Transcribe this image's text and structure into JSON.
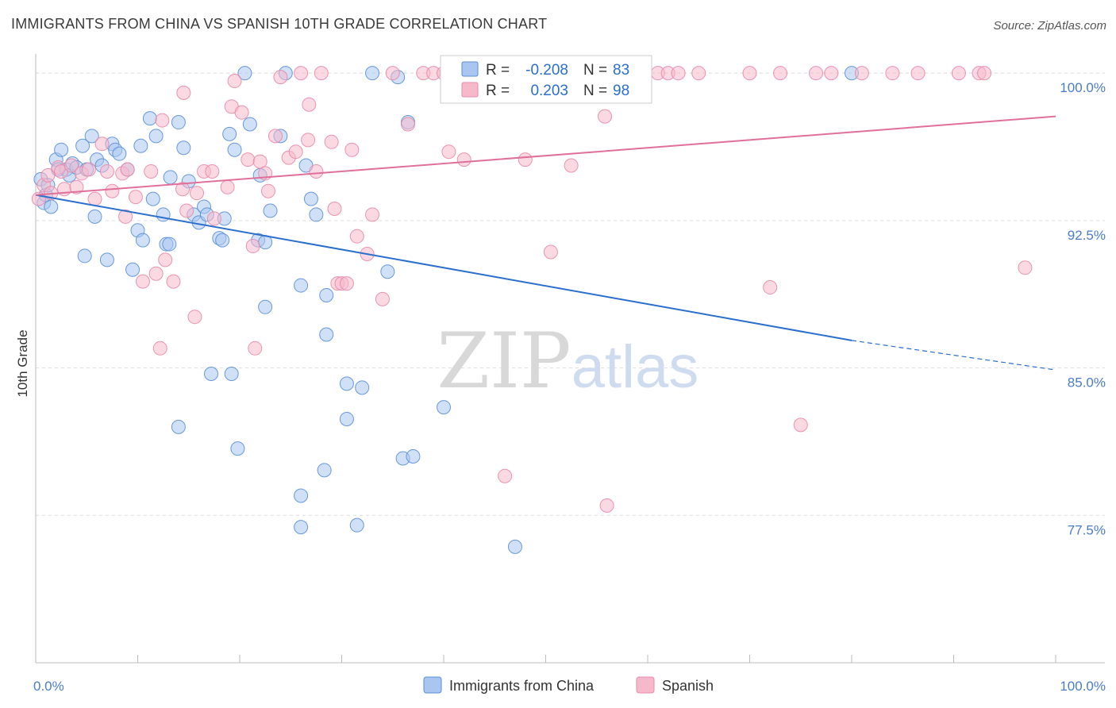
{
  "header": {
    "title": "IMMIGRANTS FROM CHINA VS SPANISH 10TH GRADE CORRELATION CHART",
    "source": "Source: ZipAtlas.com"
  },
  "watermark": {
    "zip": "ZIP",
    "atlas": "atlas"
  },
  "colors": {
    "china_fill": "#a9c6f0",
    "china_stroke": "#5b8fd6",
    "china_line": "#2a6fce",
    "spanish_fill": "#f6b9cc",
    "spanish_stroke": "#e88aa8",
    "spanish_line": "#e0709a",
    "grid": "#dddddd",
    "tick_text": "#4a7cc9"
  },
  "chart_data": {
    "type": "scatter",
    "title": "IMMIGRANTS FROM CHINA VS SPANISH 10TH GRADE CORRELATION CHART",
    "xlabel": "",
    "ylabel": "10th Grade",
    "xlim": [
      0,
      100
    ],
    "ylim": [
      70.0,
      101.5
    ],
    "x_tick_labels": [
      "0.0%",
      "100.0%"
    ],
    "y_ticks": [
      {
        "value": 100.0,
        "label": "100.0%"
      },
      {
        "value": 92.5,
        "label": "92.5%"
      },
      {
        "value": 85.0,
        "label": "85.0%"
      },
      {
        "value": 77.5,
        "label": "77.5%"
      }
    ],
    "grid": true,
    "legend": {
      "placement": "top-center",
      "entries": [
        {
          "r_label": "R =",
          "r": "-0.208",
          "n_label": "N =",
          "n": "83"
        },
        {
          "r_label": "R =",
          "r": "0.203",
          "n_label": "N =",
          "n": "98"
        }
      ]
    },
    "series": [
      {
        "name": "Immigrants from China",
        "r": -0.208,
        "n": 83,
        "trend": {
          "x": [
            0,
            80
          ],
          "y": [
            93.8,
            86.4
          ],
          "dashed_to": {
            "x": 100,
            "y": 84.9
          }
        },
        "points": [
          [
            0.5,
            94.6
          ],
          [
            0.8,
            93.4
          ],
          [
            1.0,
            93.8
          ],
          [
            1.2,
            94.3
          ],
          [
            1.5,
            93.2
          ],
          [
            2.0,
            95.6
          ],
          [
            2.2,
            95.1
          ],
          [
            2.5,
            96.1
          ],
          [
            3.0,
            95.1
          ],
          [
            3.3,
            94.8
          ],
          [
            3.6,
            95.4
          ],
          [
            4.0,
            95.2
          ],
          [
            4.6,
            96.3
          ],
          [
            5.0,
            95.1
          ],
          [
            5.5,
            96.8
          ],
          [
            6.0,
            95.6
          ],
          [
            6.5,
            95.3
          ],
          [
            7.5,
            96.4
          ],
          [
            7.8,
            96.1
          ],
          [
            8.2,
            95.9
          ],
          [
            9.0,
            95.1
          ],
          [
            10.3,
            96.3
          ],
          [
            11.2,
            97.7
          ],
          [
            11.8,
            96.8
          ],
          [
            13.2,
            94.7
          ],
          [
            14.0,
            97.5
          ],
          [
            14.5,
            96.2
          ],
          [
            15.0,
            94.5
          ],
          [
            15.5,
            92.8
          ],
          [
            16.0,
            92.4
          ],
          [
            16.5,
            93.2
          ],
          [
            16.8,
            92.8
          ],
          [
            11.5,
            93.6
          ],
          [
            12.5,
            92.8
          ],
          [
            10.0,
            92.0
          ],
          [
            10.5,
            91.5
          ],
          [
            9.5,
            90.0
          ],
          [
            12.8,
            91.3
          ],
          [
            13.1,
            91.3
          ],
          [
            7.0,
            90.5
          ],
          [
            4.8,
            90.7
          ],
          [
            5.8,
            92.7
          ],
          [
            18.5,
            92.6
          ],
          [
            18.0,
            91.6
          ],
          [
            18.3,
            91.5
          ],
          [
            21.8,
            91.5
          ],
          [
            22.5,
            91.4
          ],
          [
            19.0,
            96.9
          ],
          [
            19.5,
            96.1
          ],
          [
            21.0,
            97.4
          ],
          [
            22.0,
            94.8
          ],
          [
            23.0,
            93.0
          ],
          [
            24.0,
            96.8
          ],
          [
            26.5,
            95.3
          ],
          [
            27.0,
            93.6
          ],
          [
            27.5,
            92.8
          ],
          [
            24.5,
            100.0
          ],
          [
            20.5,
            100.0
          ],
          [
            26.0,
            89.2
          ],
          [
            28.5,
            88.7
          ],
          [
            22.5,
            88.1
          ],
          [
            28.5,
            86.7
          ],
          [
            17.2,
            84.7
          ],
          [
            19.2,
            84.7
          ],
          [
            30.5,
            84.2
          ],
          [
            32.0,
            84.0
          ],
          [
            30.5,
            82.4
          ],
          [
            14.0,
            82.0
          ],
          [
            19.8,
            80.9
          ],
          [
            26.0,
            78.5
          ],
          [
            28.3,
            79.8
          ],
          [
            36.0,
            80.4
          ],
          [
            37.0,
            80.5
          ],
          [
            40.0,
            83.0
          ],
          [
            34.5,
            89.9
          ],
          [
            33.0,
            100.0
          ],
          [
            35.5,
            99.8
          ],
          [
            36.5,
            97.5
          ],
          [
            41.0,
            100.0
          ],
          [
            47.0,
            75.9
          ],
          [
            31.5,
            77.0
          ],
          [
            26.0,
            76.9
          ],
          [
            80.0,
            100.0
          ]
        ]
      },
      {
        "name": "Spanish",
        "r": 0.203,
        "n": 98,
        "trend": {
          "x": [
            0,
            100
          ],
          "y": [
            93.8,
            97.8
          ]
        },
        "points": [
          [
            0.3,
            93.6
          ],
          [
            0.8,
            94.3
          ],
          [
            1.2,
            94.8
          ],
          [
            1.5,
            93.9
          ],
          [
            2.2,
            95.2
          ],
          [
            2.5,
            95.0
          ],
          [
            2.8,
            94.1
          ],
          [
            3.5,
            95.3
          ],
          [
            4.0,
            94.2
          ],
          [
            4.5,
            94.9
          ],
          [
            5.2,
            95.1
          ],
          [
            5.8,
            93.6
          ],
          [
            6.5,
            96.4
          ],
          [
            7.0,
            95.0
          ],
          [
            7.5,
            94.0
          ],
          [
            8.5,
            94.9
          ],
          [
            9.0,
            95.1
          ],
          [
            8.8,
            92.7
          ],
          [
            9.8,
            93.7
          ],
          [
            10.5,
            89.4
          ],
          [
            11.3,
            95.0
          ],
          [
            11.8,
            89.8
          ],
          [
            12.4,
            97.6
          ],
          [
            12.2,
            86.0
          ],
          [
            12.7,
            90.5
          ],
          [
            13.5,
            89.4
          ],
          [
            14.5,
            99.0
          ],
          [
            14.8,
            93.0
          ],
          [
            14.4,
            94.1
          ],
          [
            15.8,
            93.9
          ],
          [
            15.6,
            87.6
          ],
          [
            16.5,
            95.0
          ],
          [
            17.3,
            95.0
          ],
          [
            17.5,
            92.6
          ],
          [
            18.8,
            94.2
          ],
          [
            19.2,
            98.3
          ],
          [
            19.5,
            99.6
          ],
          [
            20.2,
            98.0
          ],
          [
            20.8,
            95.6
          ],
          [
            21.3,
            91.2
          ],
          [
            21.5,
            86.0
          ],
          [
            22.0,
            95.5
          ],
          [
            22.5,
            94.9
          ],
          [
            22.8,
            94.0
          ],
          [
            23.5,
            96.8
          ],
          [
            24.0,
            99.8
          ],
          [
            24.8,
            95.7
          ],
          [
            25.5,
            96.0
          ],
          [
            26.0,
            100.0
          ],
          [
            26.7,
            96.6
          ],
          [
            26.8,
            98.4
          ],
          [
            27.5,
            95.0
          ],
          [
            28.0,
            100.0
          ],
          [
            29.0,
            96.5
          ],
          [
            29.3,
            93.1
          ],
          [
            29.6,
            89.3
          ],
          [
            30.0,
            89.3
          ],
          [
            30.5,
            89.3
          ],
          [
            31.0,
            96.1
          ],
          [
            31.5,
            91.7
          ],
          [
            32.5,
            90.8
          ],
          [
            33.0,
            92.8
          ],
          [
            34.0,
            88.5
          ],
          [
            35.0,
            100.0
          ],
          [
            36.5,
            97.4
          ],
          [
            38.0,
            100.0
          ],
          [
            39.0,
            100.0
          ],
          [
            40.0,
            100.0
          ],
          [
            40.5,
            96.0
          ],
          [
            42.0,
            95.6
          ],
          [
            44.0,
            100.0
          ],
          [
            46.5,
            99.5
          ],
          [
            48.0,
            95.6
          ],
          [
            50.5,
            90.9
          ],
          [
            52.0,
            100.0
          ],
          [
            52.5,
            95.3
          ],
          [
            55.0,
            100.0
          ],
          [
            55.8,
            97.8
          ],
          [
            56.0,
            78.0
          ],
          [
            58.0,
            100.0
          ],
          [
            61.0,
            100.0
          ],
          [
            62.0,
            100.0
          ],
          [
            63.0,
            100.0
          ],
          [
            65.0,
            100.0
          ],
          [
            70.0,
            100.0
          ],
          [
            73.0,
            100.0
          ],
          [
            76.5,
            100.0
          ],
          [
            78.0,
            100.0
          ],
          [
            81.0,
            100.0
          ],
          [
            84.0,
            100.0
          ],
          [
            86.5,
            100.0
          ],
          [
            90.5,
            100.0
          ],
          [
            92.5,
            100.0
          ],
          [
            93.0,
            100.0
          ],
          [
            72.0,
            89.1
          ],
          [
            75.0,
            82.1
          ],
          [
            97.0,
            90.1
          ],
          [
            46.0,
            79.5
          ]
        ]
      }
    ]
  }
}
